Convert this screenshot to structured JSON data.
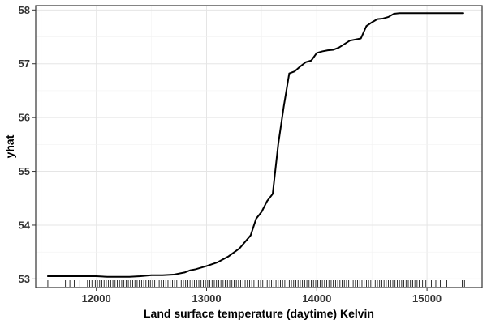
{
  "chart_data": {
    "type": "line",
    "title": "",
    "xlabel": "Land surface temperature (daytime) Kelvin",
    "ylabel": "yhat",
    "xlim": [
      11450,
      15500
    ],
    "ylim": [
      52.84,
      58.08
    ],
    "x_ticks": [
      12000,
      13000,
      14000,
      15000
    ],
    "y_ticks": [
      53,
      54,
      55,
      56,
      57,
      58
    ],
    "grid": true,
    "legend": "none",
    "line_color": "#000000",
    "series": [
      {
        "x": [
          11560,
          11800,
          12000,
          12100,
          12200,
          12300,
          12400,
          12500,
          12600,
          12700,
          12800,
          12850,
          12900,
          13000,
          13100,
          13200,
          13300,
          13400,
          13450,
          13500,
          13550,
          13600,
          13650,
          13700,
          13750,
          13800,
          13850,
          13900,
          13950,
          14000,
          14050,
          14100,
          14150,
          14200,
          14300,
          14400,
          14450,
          14500,
          14550,
          14600,
          14650,
          14700,
          14750,
          14800,
          14850,
          14900,
          14950,
          15000,
          15100,
          15200,
          15330
        ],
        "y": [
          53.05,
          53.05,
          53.05,
          53.04,
          53.04,
          53.04,
          53.05,
          53.07,
          53.07,
          53.08,
          53.12,
          53.16,
          53.18,
          53.24,
          53.31,
          53.42,
          53.57,
          53.81,
          54.12,
          54.25,
          54.45,
          54.58,
          55.5,
          56.2,
          56.82,
          56.86,
          56.95,
          57.03,
          57.06,
          57.2,
          57.23,
          57.25,
          57.26,
          57.3,
          57.43,
          57.47,
          57.7,
          57.77,
          57.83,
          57.84,
          57.87,
          57.93,
          57.94,
          57.94,
          57.94,
          57.94,
          57.94,
          57.94,
          57.94,
          57.94,
          57.94
        ]
      }
    ],
    "rug_x": [
      11560,
      11720,
      11760,
      11800,
      11850,
      11920,
      11940,
      11960,
      11990,
      12010,
      12030,
      12050,
      12070,
      12090,
      12110,
      12130,
      12150,
      12170,
      12190,
      12210,
      12230,
      12250,
      12270,
      12290,
      12310,
      12330,
      12350,
      12370,
      12390,
      12410,
      12430,
      12450,
      12470,
      12490,
      12510,
      12530,
      12550,
      12570,
      12590,
      12610,
      12630,
      12650,
      12670,
      12690,
      12710,
      12730,
      12750,
      12770,
      12790,
      12810,
      12830,
      12850,
      12870,
      12890,
      12910,
      12930,
      12950,
      12970,
      12990,
      13010,
      13030,
      13050,
      13070,
      13090,
      13110,
      13130,
      13150,
      13170,
      13190,
      13210,
      13230,
      13250,
      13270,
      13290,
      13310,
      13330,
      13350,
      13370,
      13390,
      13410,
      13430,
      13450,
      13470,
      13490,
      13510,
      13530,
      13550,
      13570,
      13590,
      13610,
      13630,
      13650,
      13670,
      13690,
      13710,
      13730,
      13750,
      13770,
      13790,
      13810,
      13830,
      13850,
      13870,
      13890,
      13910,
      13930,
      13950,
      13970,
      13990,
      14010,
      14030,
      14050,
      14070,
      14090,
      14110,
      14130,
      14150,
      14170,
      14190,
      14210,
      14230,
      14250,
      14270,
      14290,
      14310,
      14330,
      14350,
      14370,
      14390,
      14410,
      14430,
      14450,
      14470,
      14490,
      14510,
      14530,
      14550,
      14570,
      14590,
      14610,
      14630,
      14650,
      14670,
      14690,
      14710,
      14730,
      14750,
      14770,
      14790,
      14810,
      14830,
      14850,
      14870,
      14890,
      14910,
      14930,
      14960,
      14990,
      15040,
      15080,
      15120,
      15180,
      15320,
      15340
    ]
  }
}
